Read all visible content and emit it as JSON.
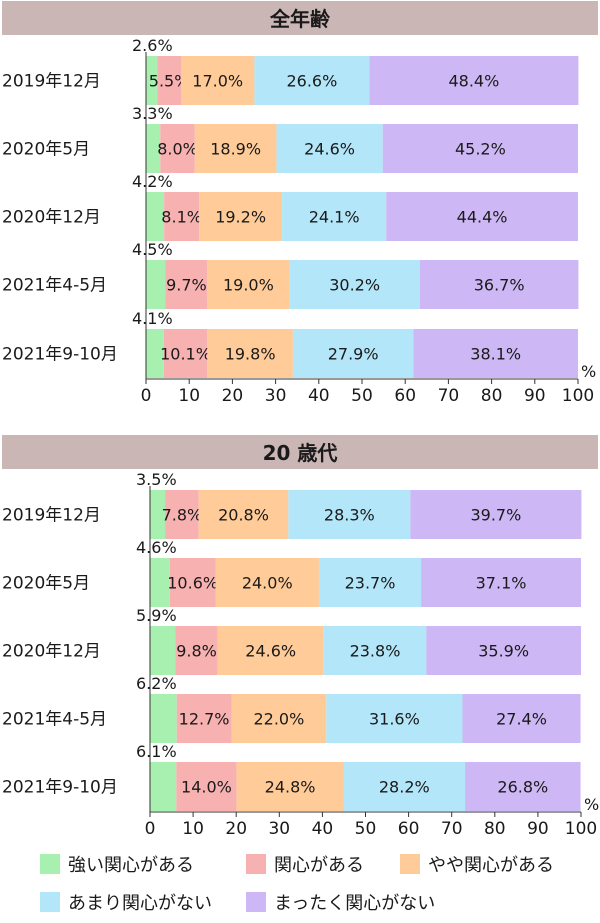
{
  "chart_data": [
    {
      "type": "bar",
      "orientation": "horizontal",
      "stacked": true,
      "title": "全年齢",
      "categories": [
        "2019年12月",
        "2020年5月",
        "2020年12月",
        "2021年4-5月",
        "2021年9-10月"
      ],
      "series": [
        {
          "name": "強い関心がある",
          "values": [
            2.6,
            3.3,
            4.2,
            4.5,
            4.1
          ],
          "labels": [
            "2.6%",
            "3.3%",
            "4.2%",
            "4.5%",
            "4.1%"
          ]
        },
        {
          "name": "関心がある",
          "values": [
            5.5,
            8.0,
            8.1,
            9.7,
            10.1
          ],
          "labels": [
            "5.5%",
            "8.0%",
            "8.1%",
            "9.7%",
            "10.1%"
          ]
        },
        {
          "name": "やや関心がある",
          "values": [
            17.0,
            18.9,
            19.2,
            19.0,
            19.8
          ],
          "labels": [
            "17.0%",
            "18.9%",
            "19.2%",
            "19.0%",
            "19.8%"
          ]
        },
        {
          "name": "あまり関心がない",
          "values": [
            26.6,
            24.6,
            24.1,
            30.2,
            27.9
          ],
          "labels": [
            "26.6%",
            "24.6%",
            "24.1%",
            "30.2%",
            "27.9%"
          ]
        },
        {
          "name": "まったく関心がない",
          "values": [
            48.4,
            45.2,
            44.4,
            36.7,
            38.1
          ],
          "labels": [
            "48.4%",
            "45.2%",
            "44.4%",
            "36.7%",
            "38.1%"
          ]
        }
      ],
      "xlim": [
        0,
        100
      ],
      "ticks": [
        "0",
        "10",
        "20",
        "30",
        "40",
        "50",
        "60",
        "70",
        "80",
        "90",
        "100"
      ],
      "unit": "%"
    },
    {
      "type": "bar",
      "orientation": "horizontal",
      "stacked": true,
      "title": "20 歳代",
      "categories": [
        "2019年12月",
        "2020年5月",
        "2020年12月",
        "2021年4-5月",
        "2021年9-10月"
      ],
      "series": [
        {
          "name": "強い関心がある",
          "values": [
            3.5,
            4.6,
            5.9,
            6.2,
            6.1
          ],
          "labels": [
            "3.5%",
            "4.6%",
            "5.9%",
            "6.2%",
            "6.1%"
          ]
        },
        {
          "name": "関心がある",
          "values": [
            7.8,
            10.6,
            9.8,
            12.7,
            14.0
          ],
          "labels": [
            "7.8%",
            "10.6%",
            "9.8%",
            "12.7%",
            "14.0%"
          ]
        },
        {
          "name": "やや関心がある",
          "values": [
            20.8,
            24.0,
            24.6,
            22.0,
            24.8
          ],
          "labels": [
            "20.8%",
            "24.0%",
            "24.6%",
            "22.0%",
            "24.8%"
          ]
        },
        {
          "name": "あまり関心がない",
          "values": [
            28.3,
            23.7,
            23.8,
            31.6,
            28.2
          ],
          "labels": [
            "28.3%",
            "23.7%",
            "23.8%",
            "31.6%",
            "28.2%"
          ]
        },
        {
          "name": "まったく関心がない",
          "values": [
            39.7,
            37.1,
            35.9,
            27.4,
            26.8
          ],
          "labels": [
            "39.7%",
            "37.1%",
            "35.9%",
            "27.4%",
            "26.8%"
          ]
        }
      ],
      "xlim": [
        0,
        100
      ],
      "ticks": [
        "0",
        "10",
        "20",
        "30",
        "40",
        "50",
        "60",
        "70",
        "80",
        "90",
        "100"
      ],
      "unit": "%"
    }
  ],
  "legend": {
    "items": [
      {
        "label": "強い関心がある",
        "color": "#a8f0b0"
      },
      {
        "label": "関心がある",
        "color": "#f7b1b1"
      },
      {
        "label": "やや関心がある",
        "color": "#ffcc99"
      },
      {
        "label": "あまり関心がない",
        "color": "#b3e6f8"
      },
      {
        "label": "まったく関心がない",
        "color": "#cdb8f5"
      }
    ]
  },
  "colors": {
    "header_bg": "#cbb6b6",
    "series": [
      "#a8f0b0",
      "#f7b1b1",
      "#ffcc99",
      "#b3e6f8",
      "#cdb8f5"
    ],
    "axis": "#333333"
  }
}
